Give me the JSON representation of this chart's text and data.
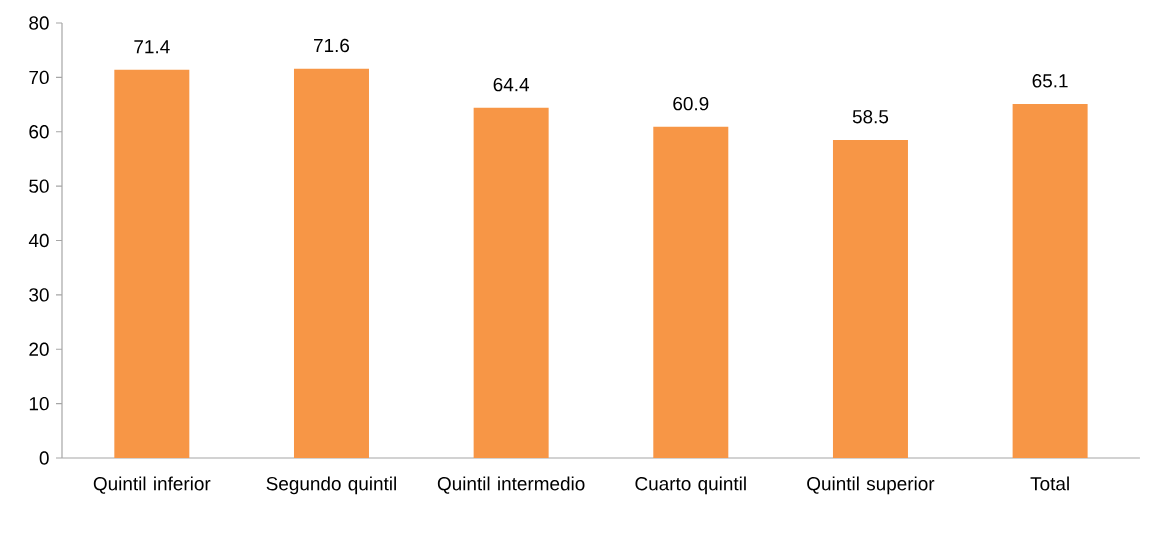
{
  "chart_data": {
    "type": "bar",
    "categories": [
      "Quintil inferior",
      "Segundo quintil",
      "Quintil intermedio",
      "Cuarto quintil",
      "Quintil superior",
      "Total"
    ],
    "values": [
      71.4,
      71.6,
      64.4,
      60.9,
      58.5,
      65.1
    ],
    "color": "#f79646",
    "ylim": [
      0,
      80
    ],
    "yticks": [
      0,
      10,
      20,
      30,
      40,
      50,
      60,
      70,
      80
    ],
    "data_labels": true
  }
}
